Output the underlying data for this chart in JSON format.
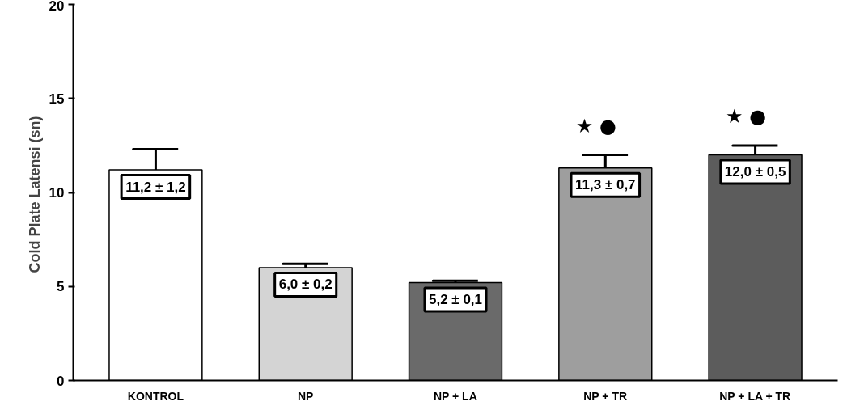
{
  "chart_data": {
    "type": "bar",
    "ylabel": "Cold  Plate Latensi (sn)",
    "categories": [
      "KONTROL",
      "NP",
      "NP + LA",
      "NP + TR",
      "NP + LA + TR"
    ],
    "values": [
      11.2,
      6.0,
      5.2,
      11.3,
      12.0
    ],
    "colors": [
      "#ffffff",
      "#d4d4d4",
      "#6a6a6a",
      "#9e9e9e",
      "#5c5c5c"
    ],
    "errors": [
      [
        11.2,
        12.3
      ],
      [
        6.0,
        6.2
      ],
      [
        5.2,
        5.3
      ],
      [
        11.3,
        12.0
      ],
      [
        12.0,
        12.5
      ]
    ],
    "value_labels": [
      "11,2 ± 1,2",
      "6,0 ± 0,2",
      "5,2 ± 0,1",
      "11,3 ± 0,7",
      "12,0 ± 0,5"
    ],
    "annotations": [
      "★    ●",
      "★    ●"
    ],
    "ylim": [
      0,
      20
    ],
    "yticks": [
      0,
      5,
      10,
      15,
      20
    ],
    "grid": false
  }
}
